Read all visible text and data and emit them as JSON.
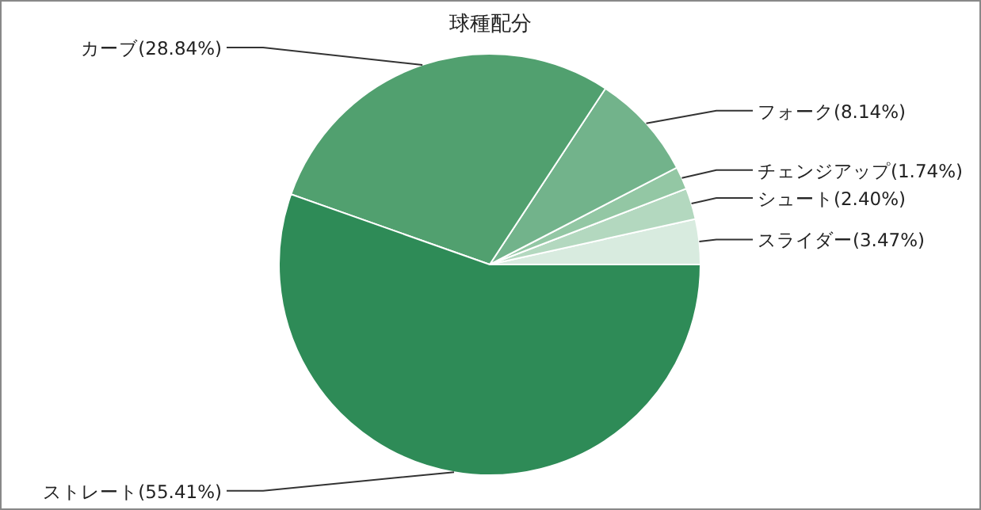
{
  "chart_data": {
    "type": "pie",
    "title": "球種配分",
    "categories": [
      "スライダー",
      "シュート",
      "チェンジアップ",
      "フォーク",
      "カーブ",
      "ストレート"
    ],
    "values": [
      3.47,
      2.4,
      1.74,
      8.14,
      28.84,
      55.41
    ],
    "value_labels": [
      "(3.47%)",
      "(2.40%)",
      "(1.74%)",
      "(8.14%)",
      "(28.84%)",
      "(55.41%)"
    ],
    "colors": [
      "#d8ebdf",
      "#b3d8bf",
      "#93c7a4",
      "#72b38b",
      "#51a06f",
      "#2e8b57"
    ]
  }
}
